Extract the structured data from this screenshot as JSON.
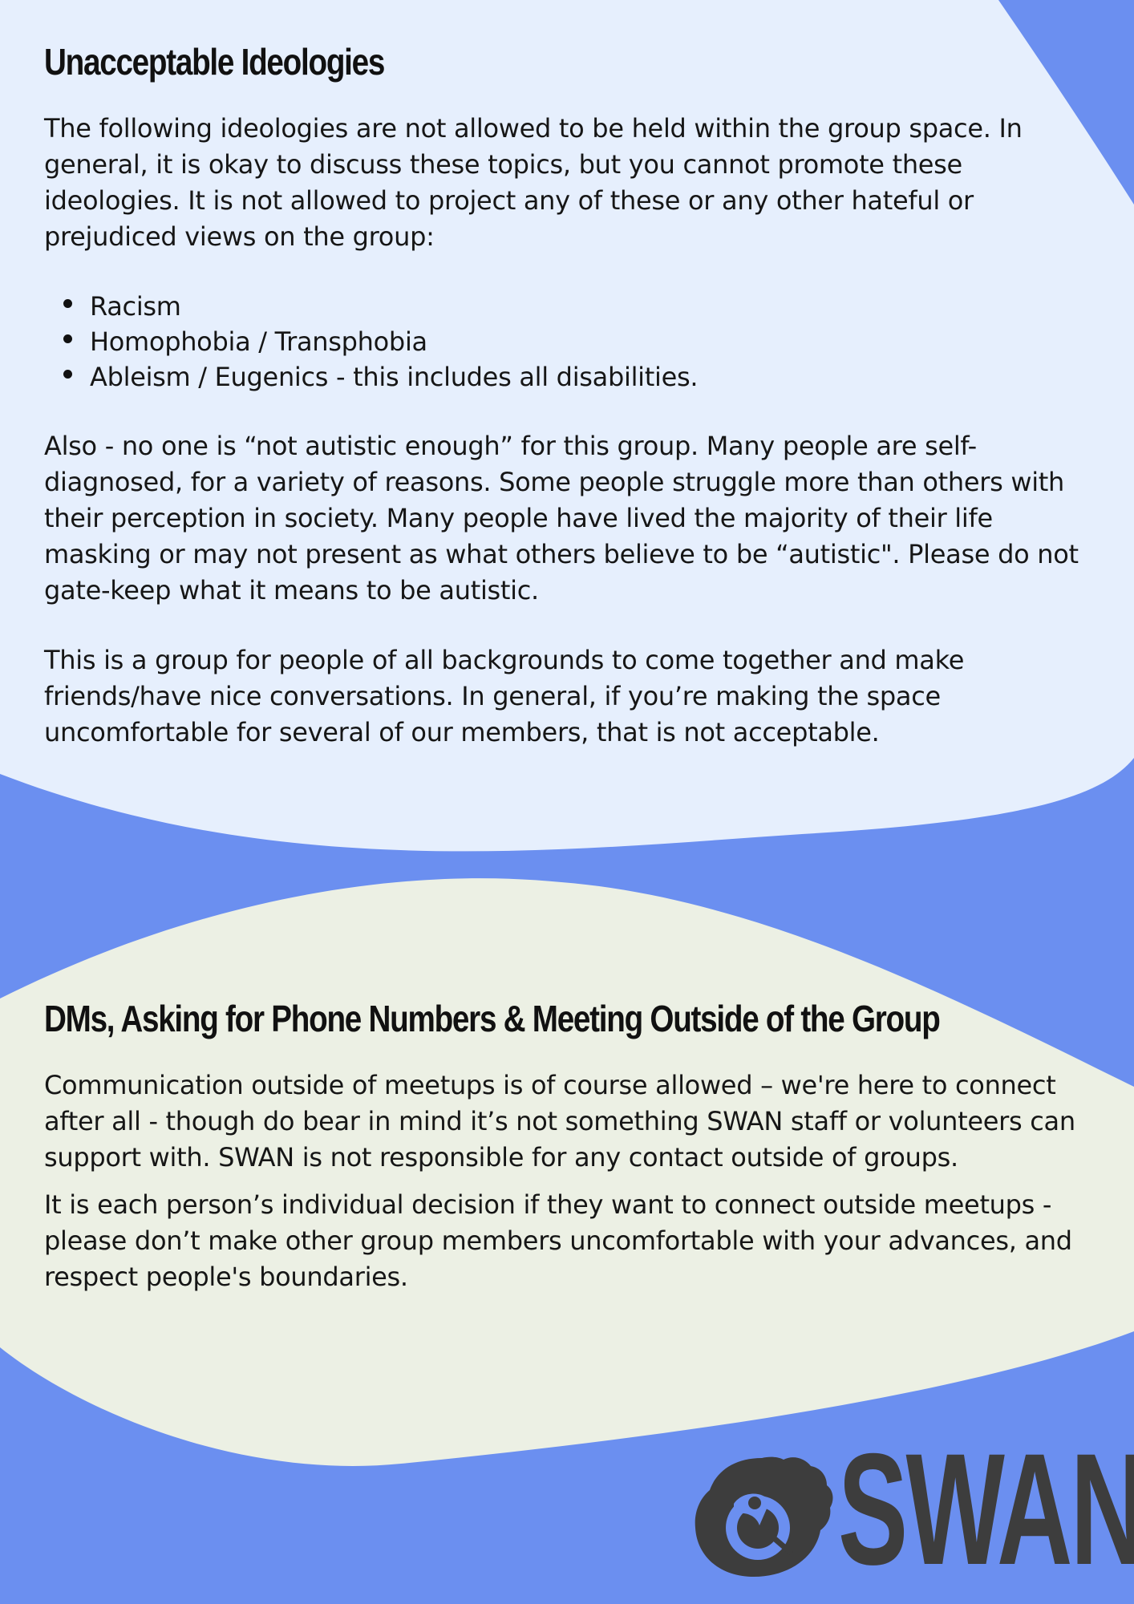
{
  "section1": {
    "heading": "Unacceptable Ideologies",
    "intro": "The following ideologies are not allowed to be held within the group space. In general, it is okay to discuss these topics, but you cannot promote these ideologies. It is not allowed to project any of these or any other hateful or prejudiced views on the group:",
    "list": [
      "Racism",
      "Homophobia / Transphobia",
      "Ableism / Eugenics - this includes all disabilities."
    ],
    "para2": "Also - no one is “not autistic enough” for this group. Many people are self-diagnosed, for a variety of reasons. Some people struggle more than others with their perception in society. Many people have lived the majority of their life masking or may not present as what others believe to be “autistic\". Please do not gate-keep what it means to be autistic.",
    "para3": "This is a group for people of all backgrounds to come together and make friends/have nice conversations. In general, if you’re making the space uncomfortable for several of our members, that is not acceptable."
  },
  "section2": {
    "heading": "DMs, Asking for Phone Numbers & Meeting Outside of the Group",
    "para1": "Communication outside of meetups is of course allowed – we're here to connect after all - though do bear in mind it’s not something SWAN staff or volunteers can support with. SWAN is not responsible for any contact outside of groups.",
    "para2": "It is each person’s individual decision if they want to connect outside meetups - please don’t make other group members uncomfortable with your advances, and respect people's boundaries."
  },
  "logo": {
    "wordmark": "SWAN",
    "icon": "swan-icon"
  },
  "colors": {
    "blue_background": "#6b8ff0",
    "top_panel": "#e6effd",
    "bottom_panel": "#ecf0e4",
    "logo": "#3d3d3d",
    "text": "#161616"
  }
}
